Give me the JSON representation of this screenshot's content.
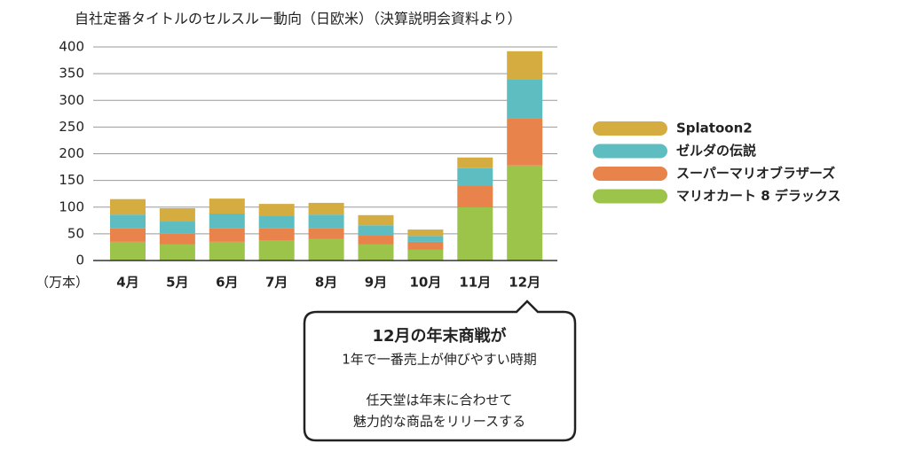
{
  "chart_data": {
    "type": "stacked-bar",
    "title": "自社定番タイトルのセルスルー動向（日欧米）（決算説明会資料より）",
    "y_label": "（万本）",
    "categories": [
      "4月",
      "5月",
      "6月",
      "7月",
      "8月",
      "9月",
      "10月",
      "11月",
      "12月"
    ],
    "series": [
      {
        "name": "Splatoon2",
        "color": "#d5ac3f",
        "values": [
          29,
          25,
          28,
          23,
          22,
          19,
          12,
          20,
          52
        ]
      },
      {
        "name": "ゼルダの伝説",
        "color": "#5dbdc1",
        "values": [
          26,
          22,
          27,
          23,
          25,
          18,
          11,
          32,
          73
        ]
      },
      {
        "name": "スーパーマリオブラザーズ",
        "color": "#e8844b",
        "values": [
          25,
          21,
          26,
          23,
          21,
          18,
          15,
          41,
          89
        ]
      },
      {
        "name": "マリオカート 8 デラックス",
        "color": "#9dc44a",
        "values": [
          35,
          30,
          35,
          37,
          40,
          30,
          20,
          100,
          178
        ]
      }
    ],
    "ylim": [
      0,
      400
    ],
    "yticks": [
      0,
      50,
      100,
      150,
      200,
      250,
      300,
      350,
      400
    ],
    "grid": true,
    "legend": "right",
    "annotations": [
      "12月の年末商戦が",
      "1年で一番売上が伸びやすい時期",
      "任天堂は年末に合わせて",
      "魅力的な商品をリリースする"
    ]
  }
}
